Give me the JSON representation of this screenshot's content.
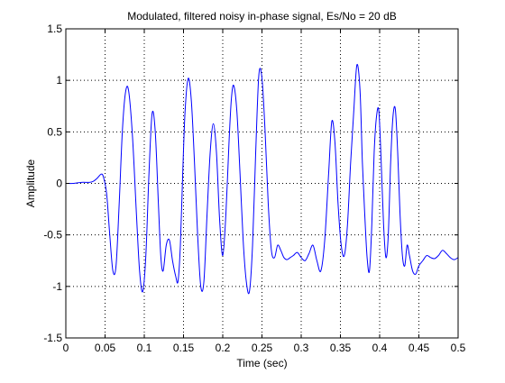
{
  "chart_data": {
    "type": "line",
    "title": "Modulated, filtered noisy in-phase signal, Es/No = 20 dB",
    "xlabel": "Time (sec)",
    "ylabel": "Amplitude",
    "xlim": [
      0,
      0.5
    ],
    "ylim": [
      -1.5,
      1.5
    ],
    "xticks": [
      0,
      0.05,
      0.1,
      0.15,
      0.2,
      0.25,
      0.3,
      0.35,
      0.4,
      0.45,
      0.5
    ],
    "xtick_labels": [
      "0",
      "0.05",
      "0.1",
      "0.15",
      "0.2",
      "0.25",
      "0.3",
      "0.35",
      "0.4",
      "0.45",
      "0.5"
    ],
    "yticks": [
      -1.5,
      -1,
      -0.5,
      0,
      0.5,
      1,
      1.5
    ],
    "ytick_labels": [
      "-1.5",
      "-1",
      "-0.5",
      "0",
      "0.5",
      "1",
      "1.5"
    ],
    "grid": true,
    "line_color": "#0000ff",
    "series": [
      {
        "x": [
          0,
          0.01,
          0.02,
          0.03,
          0.035,
          0.04,
          0.045,
          0.048,
          0.052,
          0.056,
          0.06,
          0.064,
          0.068,
          0.072,
          0.076,
          0.08,
          0.085,
          0.09,
          0.094,
          0.098,
          0.102,
          0.106,
          0.11,
          0.114,
          0.118,
          0.121,
          0.124,
          0.128,
          0.132,
          0.136,
          0.14,
          0.143,
          0.146,
          0.149,
          0.152,
          0.156,
          0.16,
          0.164,
          0.168,
          0.172,
          0.176,
          0.18,
          0.184,
          0.188,
          0.192,
          0.196,
          0.2,
          0.204,
          0.208,
          0.211,
          0.214,
          0.218,
          0.222,
          0.226,
          0.23,
          0.234,
          0.238,
          0.242,
          0.246,
          0.25,
          0.254,
          0.258,
          0.262,
          0.266,
          0.27,
          0.274,
          0.278,
          0.282,
          0.286,
          0.29,
          0.295,
          0.3,
          0.305,
          0.31,
          0.315,
          0.32,
          0.325,
          0.33,
          0.335,
          0.339,
          0.343,
          0.347,
          0.351,
          0.355,
          0.359,
          0.363,
          0.367,
          0.371,
          0.375,
          0.378,
          0.381,
          0.384,
          0.387,
          0.39,
          0.393,
          0.396,
          0.399,
          0.402,
          0.405,
          0.408,
          0.411,
          0.414,
          0.417,
          0.42,
          0.423,
          0.426,
          0.429,
          0.432,
          0.435,
          0.438,
          0.442,
          0.446,
          0.45,
          0.455,
          0.46,
          0.465,
          0.47,
          0.475,
          0.48,
          0.485,
          0.49,
          0.495,
          0.5
        ],
        "y": [
          0,
          0,
          0.01,
          0.01,
          0.02,
          0.05,
          0.09,
          0.06,
          -0.1,
          -0.5,
          -0.85,
          -0.8,
          -0.2,
          0.5,
          0.88,
          0.9,
          0.45,
          -0.3,
          -0.85,
          -1.05,
          -0.7,
          0.1,
          0.68,
          0.5,
          -0.2,
          -0.7,
          -0.85,
          -0.6,
          -0.55,
          -0.75,
          -0.9,
          -0.95,
          -0.6,
          0.1,
          0.7,
          1.02,
          0.8,
          0.2,
          -0.5,
          -1.0,
          -0.95,
          -0.3,
          0.3,
          0.58,
          0.3,
          -0.35,
          -0.7,
          -0.3,
          0.4,
          0.82,
          0.95,
          0.7,
          0.1,
          -0.55,
          -0.95,
          -1.05,
          -0.6,
          0.3,
          1.05,
          1.02,
          0.5,
          -0.2,
          -0.65,
          -0.72,
          -0.6,
          -0.65,
          -0.72,
          -0.74,
          -0.72,
          -0.7,
          -0.67,
          -0.72,
          -0.75,
          -0.68,
          -0.6,
          -0.75,
          -0.85,
          -0.55,
          0.1,
          0.6,
          0.4,
          -0.2,
          -0.6,
          -0.7,
          -0.4,
          0.2,
          0.7,
          1.15,
          0.9,
          0.2,
          -0.3,
          -0.72,
          -0.85,
          -0.4,
          0.3,
          0.65,
          0.7,
          0.2,
          -0.4,
          -0.72,
          -0.5,
          0.2,
          0.65,
          0.72,
          0.3,
          -0.3,
          -0.7,
          -0.8,
          -0.6,
          -0.7,
          -0.85,
          -0.88,
          -0.8,
          -0.75,
          -0.7,
          -0.72,
          -0.73,
          -0.7,
          -0.65,
          -0.68,
          -0.72,
          -0.74,
          -0.72
        ]
      }
    ]
  }
}
